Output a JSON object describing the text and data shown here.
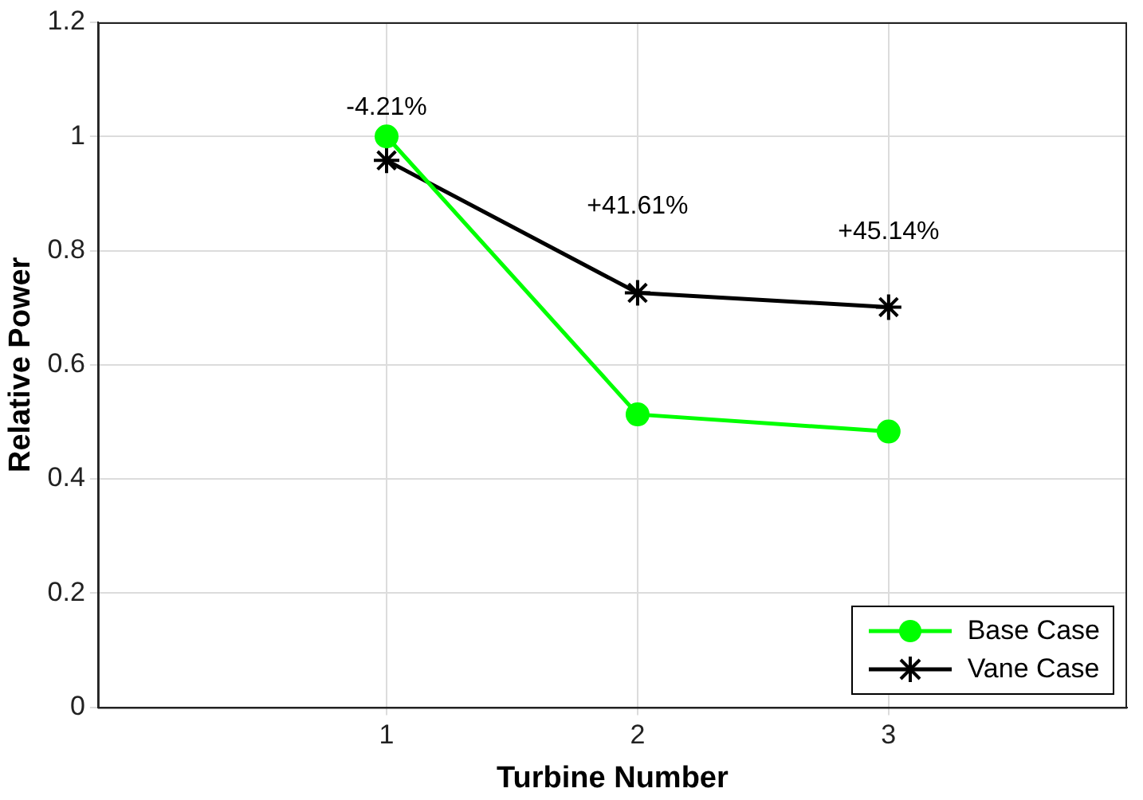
{
  "chart_data": {
    "type": "line",
    "xlabel": "Turbine Number",
    "ylabel": "Relative Power",
    "x": [
      1,
      2,
      3
    ],
    "series": [
      {
        "name": "Base Case",
        "color": "#00ff00",
        "values": [
          1,
          0.513,
          0.483
        ],
        "marker": "circle"
      },
      {
        "name": "Vane Case",
        "color": "#000000",
        "values": [
          0.958,
          0.726,
          0.701
        ],
        "marker": "cross"
      }
    ],
    "xlim": [
      -0.15,
      3.95
    ],
    "xticks": [
      1,
      2,
      3
    ],
    "ylim": [
      0,
      1.2
    ],
    "yticks": [
      0,
      0.2,
      0.4,
      0.6,
      0.8,
      1,
      1.2
    ],
    "grid": true,
    "legend": "bottom right",
    "line_style": "solid",
    "annotations": [
      "-4.21%",
      "+41.61%",
      "+45.14%"
    ]
  }
}
